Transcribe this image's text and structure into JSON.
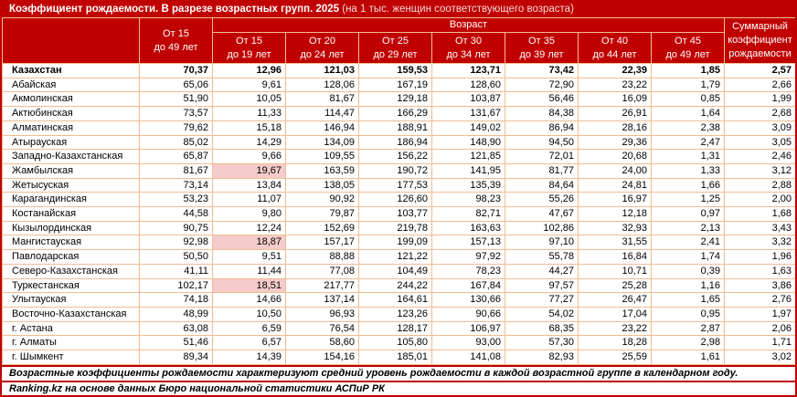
{
  "title": {
    "main": "Коэффициент рождаемости. В разрезе возрастных групп. 2025",
    "note": " (на 1 тыс. женщин соответствующего возраста)"
  },
  "header": {
    "age_label": "Возраст",
    "total_lines": [
      "От 15",
      "до 49 лет"
    ],
    "age_group_lines": [
      [
        "От 15",
        "до 19 лет"
      ],
      [
        "От 20",
        "до 24 лет"
      ],
      [
        "От 25",
        "до 29 лет"
      ],
      [
        "От 30",
        "до 34 лет"
      ],
      [
        "От 35",
        "до 39 лет"
      ],
      [
        "От 40",
        "до 44 лет"
      ],
      [
        "От 45",
        "до 49 лет"
      ]
    ],
    "tfr_lines": [
      "Суммарный",
      "коэффициент",
      "рождаемости"
    ]
  },
  "chart_data": {
    "type": "table",
    "columns": [
      "Регион",
      "От 15 до 49 лет",
      "От 15 до 19 лет",
      "От 20 до 24 лет",
      "От 25 до 29 лет",
      "От 30 до 34 лет",
      "От 35 до 39 лет",
      "От 40 до 44 лет",
      "От 45 до 49 лет",
      "Суммарный коэффициент рождаемости"
    ],
    "rows": [
      {
        "region": "Казахстан",
        "values": [
          "70,37",
          "12,96",
          "121,03",
          "159,53",
          "123,71",
          "73,42",
          "22,39",
          "1,85",
          "2,57"
        ],
        "bold": true,
        "highlight": []
      },
      {
        "region": "Абайская",
        "values": [
          "65,06",
          "9,61",
          "128,06",
          "167,19",
          "128,60",
          "72,90",
          "23,22",
          "1,79",
          "2,66"
        ],
        "bold": false,
        "highlight": []
      },
      {
        "region": "Акмолинская",
        "values": [
          "51,90",
          "10,05",
          "81,67",
          "129,18",
          "103,87",
          "56,46",
          "16,09",
          "0,85",
          "1,99"
        ],
        "bold": false,
        "highlight": []
      },
      {
        "region": "Актюбинская",
        "values": [
          "73,57",
          "11,33",
          "114,47",
          "166,29",
          "131,67",
          "84,38",
          "26,91",
          "1,64",
          "2,68"
        ],
        "bold": false,
        "highlight": []
      },
      {
        "region": "Алматинская",
        "values": [
          "79,62",
          "15,18",
          "146,94",
          "188,91",
          "149,02",
          "86,94",
          "28,16",
          "2,38",
          "3,09"
        ],
        "bold": false,
        "highlight": []
      },
      {
        "region": "Атырауская",
        "values": [
          "85,02",
          "14,29",
          "134,09",
          "186,94",
          "148,90",
          "94,50",
          "29,36",
          "2,47",
          "3,05"
        ],
        "bold": false,
        "highlight": []
      },
      {
        "region": "Западно-Казахстанская",
        "values": [
          "65,87",
          "9,66",
          "109,55",
          "156,22",
          "121,85",
          "72,01",
          "20,68",
          "1,31",
          "2,46"
        ],
        "bold": false,
        "highlight": []
      },
      {
        "region": "Жамбылская",
        "values": [
          "81,67",
          "19,67",
          "163,59",
          "190,72",
          "141,95",
          "81,77",
          "24,00",
          "1,33",
          "3,12"
        ],
        "bold": false,
        "highlight": [
          1
        ]
      },
      {
        "region": "Жетысуская",
        "values": [
          "73,14",
          "13,84",
          "138,05",
          "177,53",
          "135,39",
          "84,64",
          "24,81",
          "1,66",
          "2,88"
        ],
        "bold": false,
        "highlight": []
      },
      {
        "region": "Карагандинская",
        "values": [
          "53,23",
          "11,07",
          "90,92",
          "126,60",
          "98,23",
          "55,26",
          "16,97",
          "1,25",
          "2,00"
        ],
        "bold": false,
        "highlight": []
      },
      {
        "region": "Костанайская",
        "values": [
          "44,58",
          "9,80",
          "79,87",
          "103,77",
          "82,71",
          "47,67",
          "12,18",
          "0,97",
          "1,68"
        ],
        "bold": false,
        "highlight": []
      },
      {
        "region": "Кызылординская",
        "values": [
          "90,75",
          "12,24",
          "152,69",
          "219,78",
          "163,63",
          "102,86",
          "32,93",
          "2,13",
          "3,43"
        ],
        "bold": false,
        "highlight": []
      },
      {
        "region": "Мангистауская",
        "values": [
          "92,98",
          "18,87",
          "157,17",
          "199,09",
          "157,13",
          "97,10",
          "31,55",
          "2,41",
          "3,32"
        ],
        "bold": false,
        "highlight": [
          1
        ]
      },
      {
        "region": "Павлодарская",
        "values": [
          "50,50",
          "9,51",
          "88,88",
          "121,22",
          "97,92",
          "55,78",
          "16,84",
          "1,74",
          "1,96"
        ],
        "bold": false,
        "highlight": []
      },
      {
        "region": "Северо-Казахстанская",
        "values": [
          "41,11",
          "11,44",
          "77,08",
          "104,49",
          "78,23",
          "44,27",
          "10,71",
          "0,39",
          "1,63"
        ],
        "bold": false,
        "highlight": []
      },
      {
        "region": "Туркестанская",
        "values": [
          "102,17",
          "18,51",
          "217,77",
          "244,22",
          "167,84",
          "97,57",
          "25,28",
          "1,16",
          "3,86"
        ],
        "bold": false,
        "highlight": [
          1
        ]
      },
      {
        "region": "Улытауская",
        "values": [
          "74,18",
          "14,66",
          "137,14",
          "164,61",
          "130,66",
          "77,27",
          "26,47",
          "1,65",
          "2,76"
        ],
        "bold": false,
        "highlight": []
      },
      {
        "region": "Восточно-Казахстанская",
        "values": [
          "48,99",
          "10,50",
          "96,93",
          "123,26",
          "90,66",
          "54,02",
          "17,04",
          "0,95",
          "1,97"
        ],
        "bold": false,
        "highlight": []
      },
      {
        "region": "г. Астана",
        "values": [
          "63,08",
          "6,59",
          "76,54",
          "128,17",
          "106,97",
          "68,35",
          "23,22",
          "2,87",
          "2,06"
        ],
        "bold": false,
        "highlight": []
      },
      {
        "region": "г. Алматы",
        "values": [
          "51,46",
          "6,57",
          "58,60",
          "105,80",
          "93,00",
          "57,30",
          "18,28",
          "2,98",
          "1,71"
        ],
        "bold": false,
        "highlight": []
      },
      {
        "region": "г. Шымкент",
        "values": [
          "89,34",
          "14,39",
          "154,16",
          "185,01",
          "141,08",
          "82,93",
          "25,59",
          "1,61",
          "3,02"
        ],
        "bold": false,
        "highlight": []
      }
    ]
  },
  "footnote": "Возрастные коэффициенты рождаемости характеризуют средний уровень рождаемости в каждой возрастной группе в календарном году.",
  "source": "Ranking.kz на основе данных Бюро национальной статистики АСПиР РК",
  "colors": {
    "header_bg": "#C00000",
    "highlight_bg": "#F5CBCB",
    "grid_border": "#F2BC93"
  }
}
